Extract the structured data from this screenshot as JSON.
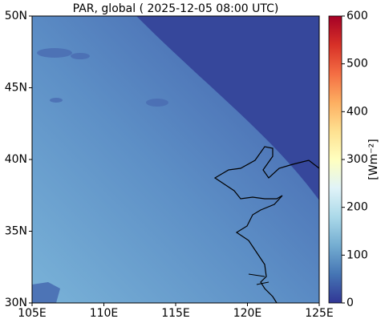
{
  "title": "PAR, global ( 2025-12-05 08:00 UTC)",
  "map": {
    "xlim": [
      105,
      125
    ],
    "ylim": [
      30,
      50
    ],
    "xticks": [
      {
        "value": 105,
        "label": "105E"
      },
      {
        "value": 110,
        "label": "110E"
      },
      {
        "value": 115,
        "label": "115E"
      },
      {
        "value": 120,
        "label": "120E"
      },
      {
        "value": 125,
        "label": "125E"
      }
    ],
    "yticks": [
      {
        "value": 30,
        "label": "30N"
      },
      {
        "value": 35,
        "label": "35N"
      },
      {
        "value": 40,
        "label": "40N"
      },
      {
        "value": 45,
        "label": "45N"
      },
      {
        "value": 50,
        "label": "50N"
      }
    ]
  },
  "colorbar": {
    "label": "[Wm⁻²]",
    "lim": [
      0,
      600
    ],
    "ticks": [
      0,
      100,
      200,
      300,
      400,
      500,
      600
    ]
  }
}
